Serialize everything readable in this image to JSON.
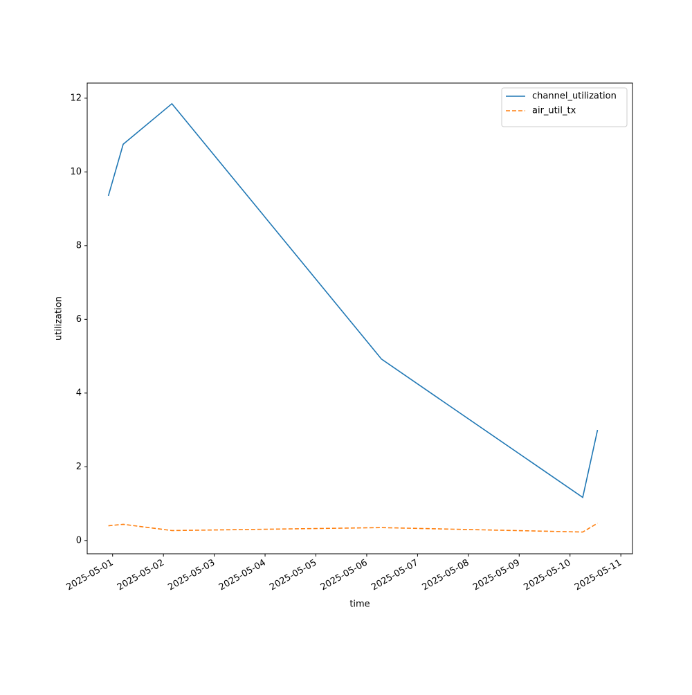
{
  "chart_data": {
    "type": "line",
    "xlabel": "time",
    "ylabel": "utilization",
    "x": [
      "2025-04-30T22:00",
      "2025-05-01T05:00",
      "2025-05-02T04:00",
      "2025-05-06T07:00",
      "2025-05-10T06:00",
      "2025-05-10T13:00"
    ],
    "series": [
      {
        "name": "channel_utilization",
        "color": "#1f77b4",
        "linestyle": "solid",
        "values": [
          9.35,
          10.75,
          11.85,
          4.92,
          1.17,
          3.0
        ]
      },
      {
        "name": "air_util_tx",
        "color": "#ff7f0e",
        "linestyle": "dashed",
        "values": [
          0.4,
          0.44,
          0.27,
          0.35,
          0.23,
          0.47
        ]
      }
    ],
    "xlim": [
      "2025-04-30T12:00",
      "2025-05-11T05:30"
    ],
    "xticks": [
      "2025-05-01",
      "2025-05-02",
      "2025-05-03",
      "2025-05-04",
      "2025-05-05",
      "2025-05-06",
      "2025-05-07",
      "2025-05-08",
      "2025-05-09",
      "2025-05-10",
      "2025-05-11"
    ],
    "ylim": [
      -0.36,
      12.41
    ],
    "yticks": [
      0,
      2,
      4,
      6,
      8,
      10,
      12
    ],
    "grid": false,
    "legend": "upper right"
  }
}
